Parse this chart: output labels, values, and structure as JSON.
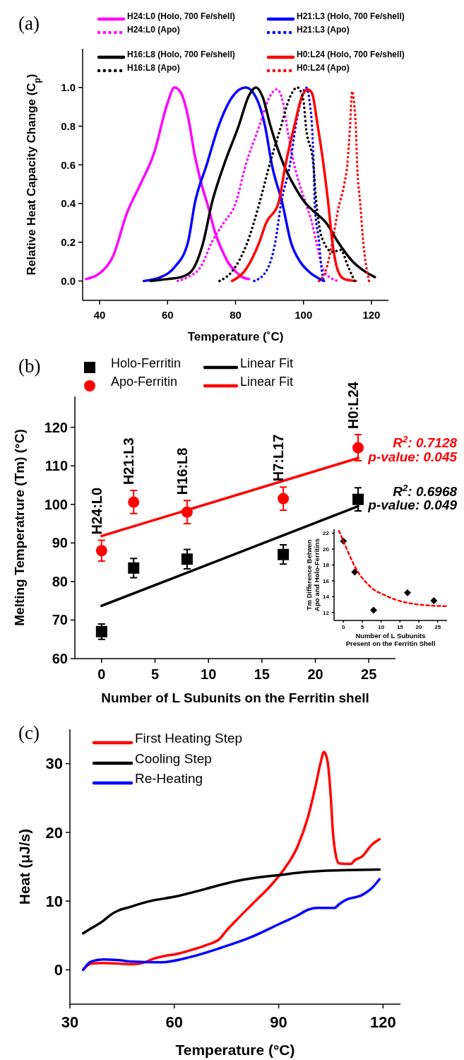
{
  "chart_data": [
    {
      "type": "line",
      "title": "(a)",
      "xlabel": "Temperature (˚C)",
      "ylabel": "Relative Heat Capacity Change (C$_{p}$)",
      "xlim": [
        35,
        125
      ],
      "ylim": [
        -0.1,
        1.2
      ],
      "xticks": [
        40,
        60,
        80,
        100,
        120
      ],
      "yticks": [
        {
          "value": 0,
          "label": "0.0"
        },
        {
          "value": 0.2,
          "label": "0.2"
        },
        {
          "value": 0.4,
          "label": "0.4"
        },
        {
          "value": 0.6,
          "label": "0.6"
        },
        {
          "value": 0.8,
          "label": "0.8"
        },
        {
          "value": 1,
          "label": "1.0"
        }
      ],
      "legend": "top",
      "series": [
        {
          "name": "H24:L0 (Holo, 700 Fe/shell)",
          "color": "#ff00ff",
          "line_style": "solid",
          "x": [
            36,
            40,
            44,
            48,
            52,
            56,
            60,
            62,
            64,
            66,
            68,
            70,
            72,
            74,
            76,
            78,
            80,
            82,
            84
          ],
          "values": [
            0.01,
            0.04,
            0.13,
            0.35,
            0.5,
            0.66,
            0.92,
            1.0,
            0.97,
            0.85,
            0.65,
            0.5,
            0.38,
            0.25,
            0.16,
            0.09,
            0.05,
            0.02,
            0.01
          ]
        },
        {
          "name": "H21:L3 (Holo, 700 Fe/shell)",
          "color": "#0000ff",
          "line_style": "solid",
          "x": [
            53,
            58,
            62,
            66,
            68,
            71.5,
            75,
            79,
            83,
            86,
            88.7,
            90.7,
            93.8,
            96.3,
            99,
            101.5,
            106
          ],
          "values": [
            0,
            0.02,
            0.07,
            0.2,
            0.4,
            0.6,
            0.8,
            0.95,
            1.0,
            0.95,
            0.8,
            0.6,
            0.4,
            0.2,
            0.1,
            0.05,
            0
          ]
        },
        {
          "name": "H24:L0 (Apo)",
          "color": "#ff00ff",
          "line_style": "dotted",
          "x": [
            63,
            66,
            70,
            73,
            76.5,
            80,
            83,
            87,
            90,
            92.2,
            94,
            95.1,
            97.3,
            100.7,
            102.5,
            103.8,
            106,
            110
          ],
          "values": [
            0,
            0.02,
            0.08,
            0.2,
            0.3,
            0.4,
            0.6,
            0.8,
            0.95,
            0.99,
            0.92,
            0.8,
            0.6,
            0.4,
            0.3,
            0.2,
            0.05,
            0
          ]
        },
        {
          "name": "H21:L3 (Apo)",
          "color": "#0000ff",
          "line_style": "dotted",
          "x": [
            85.5,
            89,
            91.7,
            93.4,
            96,
            97.7,
            99.5,
            100.7,
            102,
            102.5,
            103,
            103.3,
            104.6,
            105.4,
            106
          ],
          "values": [
            0,
            0.05,
            0.2,
            0.4,
            0.6,
            0.8,
            0.95,
            1.0,
            0.9,
            0.8,
            0.6,
            0.4,
            0.2,
            0.05,
            0
          ]
        },
        {
          "name": "H16:L8 (Holo, 700 Fe/shell)",
          "color": "#000000",
          "line_style": "solid",
          "x": [
            55,
            60,
            64,
            67,
            70.5,
            73,
            76.6,
            80.9,
            84,
            86,
            88,
            90.3,
            94.2,
            97,
            100.7,
            103,
            106.7,
            110.2,
            114.5,
            118,
            121
          ],
          "values": [
            0,
            0.01,
            0.02,
            0.05,
            0.2,
            0.4,
            0.6,
            0.8,
            0.96,
            1.0,
            0.95,
            0.8,
            0.6,
            0.5,
            0.4,
            0.36,
            0.3,
            0.2,
            0.1,
            0.05,
            0.02
          ]
        },
        {
          "name": "H0:L24 (Holo, 700 Fe/shell)",
          "color": "#ff0000",
          "line_style": "solid",
          "x": [
            79,
            82.6,
            85,
            87,
            89,
            92.6,
            94.7,
            97.3,
            99.5,
            101.2,
            102.5,
            104.2,
            105.9,
            107.3,
            108.5,
            110.2,
            112,
            115.4
          ],
          "values": [
            0,
            0.05,
            0.12,
            0.2,
            0.3,
            0.4,
            0.6,
            0.8,
            0.95,
            0.99,
            0.97,
            0.8,
            0.6,
            0.4,
            0.2,
            0.05,
            0.01,
            0
          ]
        },
        {
          "name": "H16:L8 (Apo)",
          "color": "#000000",
          "line_style": "dotted",
          "x": [
            75.3,
            79,
            83.5,
            87,
            90,
            93.4,
            96,
            98.2,
            100,
            100.7,
            102.9,
            103.8,
            105,
            106,
            108.5,
            111,
            113,
            115
          ],
          "values": [
            0,
            0.05,
            0.2,
            0.4,
            0.6,
            0.8,
            0.95,
            1.0,
            0.93,
            0.8,
            0.6,
            0.4,
            0.25,
            0.2,
            0.15,
            0.16,
            0.08,
            0
          ]
        },
        {
          "name": "H0:L24 (Apo)",
          "color": "#ff0000",
          "line_style": "dotted",
          "x": [
            104.6,
            106.5,
            108.5,
            110.2,
            112,
            112.9,
            113.7,
            114.3,
            115,
            115.4,
            115.8,
            116.7,
            117.6,
            119.3
          ],
          "values": [
            0,
            0.05,
            0.2,
            0.37,
            0.5,
            0.6,
            0.8,
            0.98,
            0.9,
            0.8,
            0.6,
            0.4,
            0.2,
            0
          ]
        }
      ]
    },
    {
      "type": "scatter",
      "title": "(b)",
      "xlabel": "Number of L Subunits on the Ferritin shell",
      "ylabel": "Melting Temperatrure (Tm) (°C)",
      "xlim": [
        -2.5,
        27.5
      ],
      "ylim": [
        60,
        128
      ],
      "xticks": [
        0,
        5,
        10,
        15,
        20,
        25
      ],
      "yticks": [
        60,
        70,
        80,
        90,
        100,
        110,
        120
      ],
      "legend": "top",
      "series": [
        {
          "name": "Holo-Ferritin",
          "color": "#000000",
          "marker": "square",
          "x": [
            0,
            3,
            8,
            17,
            24
          ],
          "values": [
            67,
            83.5,
            85.8,
            87,
            101.3
          ],
          "errors": [
            2,
            2.5,
            2.5,
            2.5,
            3
          ]
        },
        {
          "name": "Linear Fit",
          "type": "line",
          "color": "#000000",
          "line_style": "solid",
          "x": [
            0,
            24
          ],
          "values": [
            73.7,
            99.5
          ]
        },
        {
          "name": "Apo-Ferritin",
          "color": "#ff0000",
          "marker": "circle",
          "x": [
            0,
            3,
            8,
            17,
            24
          ],
          "values": [
            88,
            100.6,
            98,
            101.5,
            114.7
          ],
          "errors": [
            2.7,
            3,
            3,
            3,
            3.4
          ]
        },
        {
          "name": "Linear Fit",
          "type": "line",
          "color": "#ff0000",
          "line_style": "solid",
          "x": [
            0,
            24
          ],
          "values": [
            91.8,
            112
          ]
        }
      ],
      "annotations": [
        {
          "text": "H24:L0",
          "x": 0,
          "y": 88
        },
        {
          "text": "H21:L3",
          "x": 3,
          "y": 100.6
        },
        {
          "text": "H16:L8",
          "x": 8,
          "y": 98
        },
        {
          "text": "H7:L17",
          "x": 17,
          "y": 101.5
        },
        {
          "text": "H0:L24",
          "x": 24,
          "y": 114.7
        },
        {
          "text": "R$^{2}$: 0.7128",
          "x": 24,
          "y": 112
        },
        {
          "text": "p-value: 0.045",
          "x": 24,
          "y": 112
        },
        {
          "text": "R$^{2}$: 0.6968",
          "x": 24,
          "y": 99.5
        },
        {
          "text": "p-value: 0.049",
          "x": 24,
          "y": 99.5
        }
      ]
    },
    {
      "type": "scatter",
      "xlabel": "Number of L Subunits\nPresent on the Ferritin Shell",
      "ylabel": "Tm Difference Betwen\nApo and Holo-Ferritins",
      "xlim": [
        -2.5,
        27.5
      ],
      "ylim": [
        11,
        22.5
      ],
      "xticks": [
        0,
        5,
        10,
        15,
        20,
        25
      ],
      "yticks": [
        12,
        14,
        16,
        18,
        20,
        22
      ],
      "series": [
        {
          "color": "#000000",
          "marker": "diamond",
          "x": [
            0,
            3,
            8,
            17,
            24
          ],
          "values": [
            21,
            17.1,
            12.3,
            14.5,
            13.5
          ]
        },
        {
          "type": "line",
          "color": "#ff0000",
          "line_style": "dashed",
          "x": [
            -1.2,
            0,
            2,
            4,
            6,
            8,
            10,
            14,
            20,
            27.5
          ],
          "values": [
            22.3,
            21,
            18.8,
            17,
            15.8,
            14.9,
            14.4,
            13.6,
            13,
            12.8
          ]
        }
      ]
    },
    {
      "type": "line",
      "title": "(c)",
      "xlabel": "Temperature (°C)",
      "ylabel": "Heat (μJ/s)",
      "xlim": [
        30,
        125
      ],
      "ylim": [
        -5,
        35
      ],
      "xticks": [
        30,
        60,
        90,
        120
      ],
      "yticks": [
        0,
        10,
        20,
        30
      ],
      "legend": "top left",
      "series": [
        {
          "name": "First Heating Step",
          "color": "#ff0000",
          "x": [
            33.8,
            36.1,
            39.5,
            44,
            48,
            51,
            53.9,
            57,
            60.7,
            65,
            69.2,
            73,
            75,
            77.6,
            82.7,
            87.8,
            91.2,
            95.4,
            98.4,
            100.5,
            102,
            103,
            104,
            105,
            105.6,
            106.5,
            107.3,
            110.7,
            112,
            114,
            116.6,
            119
          ],
          "values": [
            0,
            0.9,
            1.0,
            0.9,
            0.8,
            1.0,
            1.6,
            2.0,
            2.3,
            2.9,
            3.6,
            4.5,
            5.7,
            7.1,
            9.7,
            12.3,
            14.4,
            17.9,
            22.2,
            26.5,
            30,
            31.7,
            30.5,
            25,
            20,
            16.5,
            15.5,
            15.4,
            16,
            16.5,
            18.1,
            19
          ]
        },
        {
          "name": "Cooling Step",
          "color": "#000000",
          "x": [
            33.8,
            36,
            39.5,
            42,
            43.8,
            47,
            52.2,
            60.7,
            69.2,
            77.6,
            85,
            90.3,
            97,
            103.1,
            110,
            119
          ],
          "values": [
            5.3,
            6,
            7.1,
            8.1,
            8.6,
            9.1,
            9.9,
            10.7,
            11.8,
            12.9,
            13.5,
            13.8,
            14.2,
            14.4,
            14.5,
            14.6
          ]
        },
        {
          "name": "Re-Heating",
          "color": "#0000ff",
          "x": [
            33.8,
            36.1,
            39.5,
            44,
            48,
            56.3,
            64.9,
            73.4,
            81.8,
            90.3,
            95,
            98.8,
            101,
            106,
            107.5,
            109,
            114,
            117,
            119
          ],
          "values": [
            0,
            1.2,
            1.5,
            1.4,
            1.2,
            1.1,
            1.9,
            3.2,
            4.7,
            6.7,
            7.8,
            8.8,
            9.0,
            9.0,
            9.6,
            10.1,
            10.9,
            12,
            13.2
          ]
        }
      ]
    }
  ]
}
